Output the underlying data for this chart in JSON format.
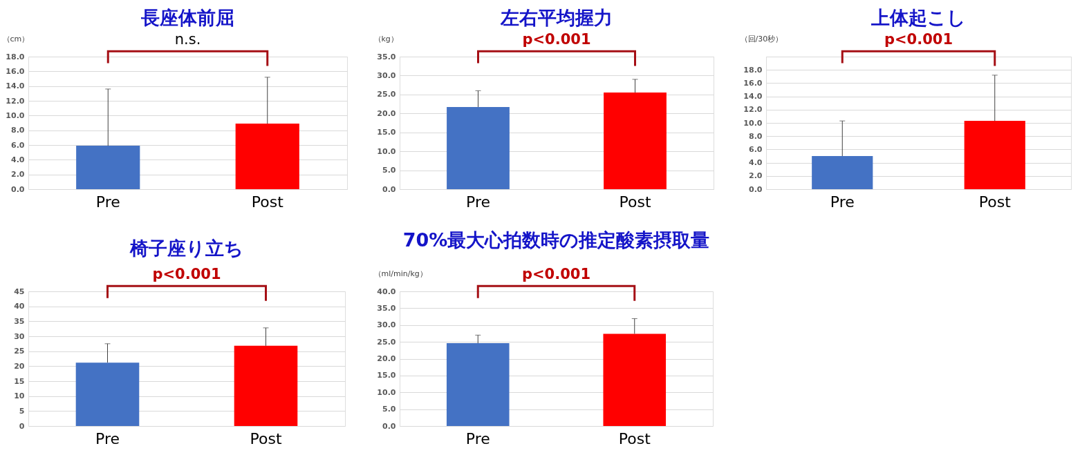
{
  "chart_data": [
    {
      "type": "bar",
      "title": "長座体前屈",
      "ylabel": "（cm）",
      "categories": [
        "Pre",
        "Post"
      ],
      "values": [
        5.9,
        8.9
      ],
      "colors": [
        "#4472c4",
        "#ff0000"
      ],
      "errors": [
        [
          5.9,
          13.6
        ],
        [
          8.9,
          15.2
        ]
      ],
      "ylim": [
        0,
        18
      ],
      "yticks": [
        {
          "value": 0,
          "label": "0.0"
        },
        {
          "value": 2,
          "label": "2.0"
        },
        {
          "value": 4,
          "label": "4.0"
        },
        {
          "value": 6,
          "label": "6.0"
        },
        {
          "value": 8,
          "label": "8.0"
        },
        {
          "value": 10,
          "label": "10.0"
        },
        {
          "value": 12,
          "label": "12.0"
        },
        {
          "value": 14,
          "label": "14.0"
        },
        {
          "value": 16,
          "label": "16.0"
        },
        {
          "value": 18,
          "label": "18.0"
        }
      ],
      "grid": "y",
      "annotations": [
        "n.s."
      ]
    },
    {
      "type": "bar",
      "title": "左右平均握力",
      "ylabel": "（kg）",
      "categories": [
        "Pre",
        "Post"
      ],
      "values": [
        21.7,
        25.5
      ],
      "colors": [
        "#4472c4",
        "#ff0000"
      ],
      "errors": [
        [
          21.7,
          26.0
        ],
        [
          25.5,
          29.0
        ]
      ],
      "ylim": [
        0,
        35
      ],
      "yticks": [
        {
          "value": 0,
          "label": "0.0"
        },
        {
          "value": 5,
          "label": "5.0"
        },
        {
          "value": 10,
          "label": "10.0"
        },
        {
          "value": 15,
          "label": "15.0"
        },
        {
          "value": 20,
          "label": "20.0"
        },
        {
          "value": 25,
          "label": "25.0"
        },
        {
          "value": 30,
          "label": "30.0"
        },
        {
          "value": 35,
          "label": "35.0"
        }
      ],
      "grid": "y",
      "annotations": [
        "p<0.001"
      ]
    },
    {
      "type": "bar",
      "title": "上体起こし",
      "ylabel": "（回/30秒）",
      "categories": [
        "Pre",
        "Post"
      ],
      "values": [
        5.0,
        10.3
      ],
      "colors": [
        "#4472c4",
        "#ff0000"
      ],
      "errors": [
        [
          5.0,
          10.3
        ],
        [
          10.3,
          17.2
        ]
      ],
      "ylim": [
        0,
        20
      ],
      "yticks": [
        {
          "value": 0,
          "label": "0.0"
        },
        {
          "value": 2,
          "label": "2.0"
        },
        {
          "value": 4,
          "label": "4.0"
        },
        {
          "value": 6,
          "label": "6.0"
        },
        {
          "value": 8,
          "label": "8.0"
        },
        {
          "value": 10,
          "label": "10.0"
        },
        {
          "value": 12,
          "label": "12.0"
        },
        {
          "value": 14,
          "label": "14.0"
        },
        {
          "value": 16,
          "label": "16.0"
        },
        {
          "value": 18,
          "label": "18.0"
        },
        {
          "value": 20,
          "label": null
        }
      ],
      "grid": "y",
      "annotations": [
        "p<0.001"
      ]
    },
    {
      "type": "bar",
      "title": "椅子座り立ち",
      "categories": [
        "Pre",
        "Post"
      ],
      "values": [
        21.2,
        26.8
      ],
      "colors": [
        "#4472c4",
        "#ff0000"
      ],
      "errors": [
        [
          21.2,
          27.5
        ],
        [
          26.8,
          32.8
        ]
      ],
      "ylim": [
        0,
        45
      ],
      "yticks": [
        0,
        5,
        10,
        15,
        20,
        25,
        30,
        35,
        40,
        45
      ],
      "grid": "y",
      "annotations": [
        "p<0.001"
      ]
    },
    {
      "type": "bar",
      "title": "70%最大心拍数時の推定酸素摂取量",
      "ylabel": "（ml/min/kg）",
      "categories": [
        "Pre",
        "Post"
      ],
      "values": [
        24.6,
        27.4
      ],
      "colors": [
        "#4472c4",
        "#ff0000"
      ],
      "errors": [
        [
          24.6,
          27.0
        ],
        [
          27.4,
          31.9
        ]
      ],
      "ylim": [
        0,
        40
      ],
      "yticks": [
        {
          "value": 0,
          "label": "0.0"
        },
        {
          "value": 5,
          "label": "5.0"
        },
        {
          "value": 10,
          "label": "10.0"
        },
        {
          "value": 15,
          "label": "15.0"
        },
        {
          "value": 20,
          "label": "20.0"
        },
        {
          "value": 25,
          "label": "25.0"
        },
        {
          "value": 30,
          "label": "30.0"
        },
        {
          "value": 35,
          "label": "35.0"
        },
        {
          "value": 40,
          "label": "40.0"
        }
      ],
      "grid": "y",
      "annotations": [
        "p<0.001"
      ]
    }
  ]
}
